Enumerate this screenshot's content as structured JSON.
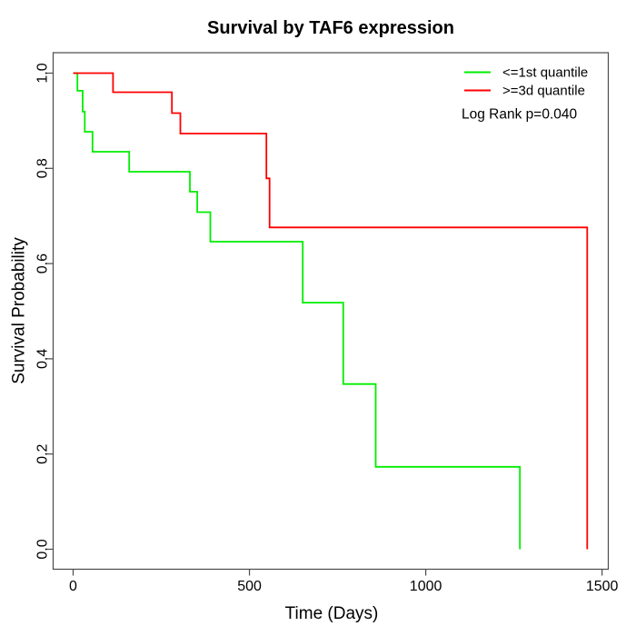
{
  "title": "Survival by TAF6 expression",
  "legend": {
    "annotation": "Log Rank p=0.040"
  },
  "chart_data": {
    "type": "line",
    "subtype": "kaplan-meier-step",
    "title": "Survival by TAF6 expression",
    "xlabel": "Time (Days)",
    "ylabel": "Survival Probability",
    "xlim": [
      0,
      1500
    ],
    "ylim": [
      0.0,
      1.0
    ],
    "x_ticks": [
      0,
      500,
      1000,
      1500
    ],
    "x_tick_labels": [
      "0",
      "500",
      "1000",
      "1500"
    ],
    "y_ticks": [
      0.0,
      0.2,
      0.4,
      0.6,
      0.8,
      1.0
    ],
    "y_tick_labels": [
      "0.0",
      "0.2",
      "0.4",
      "0.6",
      "0.8",
      "1.0"
    ],
    "grid": false,
    "legend_position": "top-right-inside",
    "annotation": "Log Rank p=0.040",
    "series": [
      {
        "name": "<=1st quantile",
        "color": "#00ee00",
        "points": [
          [
            0,
            1.0
          ],
          [
            12,
            0.963
          ],
          [
            27,
            0.919
          ],
          [
            33,
            0.877
          ],
          [
            55,
            0.835
          ],
          [
            159,
            0.793
          ],
          [
            331,
            0.751
          ],
          [
            352,
            0.708
          ],
          [
            389,
            0.646
          ],
          [
            651,
            0.518
          ],
          [
            766,
            0.347
          ],
          [
            858,
            0.173
          ],
          [
            1267,
            0.0
          ]
        ]
      },
      {
        "name": ">=3d quantile",
        "color": "#ff0000",
        "points": [
          [
            0,
            1.0
          ],
          [
            113,
            0.96
          ],
          [
            280,
            0.916
          ],
          [
            304,
            0.873
          ],
          [
            548,
            0.779
          ],
          [
            557,
            0.676
          ],
          [
            1458,
            0.0
          ]
        ]
      }
    ]
  }
}
